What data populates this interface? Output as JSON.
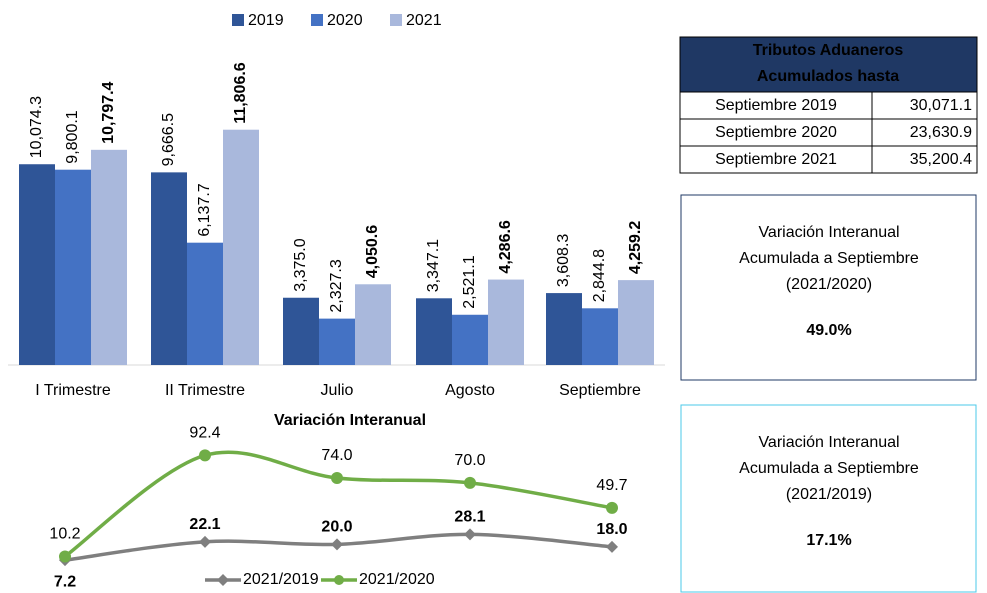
{
  "chart_data": [
    {
      "type": "bar",
      "categories": [
        "I Trimestre",
        "II Trimestre",
        "Julio",
        "Agosto",
        "Septiembre"
      ],
      "series": [
        {
          "name": "2019",
          "color": "#2f5597",
          "values": [
            10074.3,
            9666.5,
            3375.0,
            3347.1,
            3608.3
          ],
          "value_labels": [
            "10,074.3",
            "9,666.5",
            "3,375.0",
            "3,347.1",
            "3,608.3"
          ]
        },
        {
          "name": "2020",
          "color": "#4472c4",
          "values": [
            9800.1,
            6137.7,
            2327.3,
            2521.1,
            2844.8
          ],
          "value_labels": [
            "9,800.1",
            "6,137.7",
            "2,327.3",
            "2,521.1",
            "2,844.8"
          ]
        },
        {
          "name": "2021",
          "color": "#a9b8dc",
          "label_bold": true,
          "values": [
            10797.4,
            11806.6,
            4050.6,
            4286.6,
            4259.2
          ],
          "value_labels": [
            "10,797.4",
            "11,806.6",
            "4,050.6",
            "4,286.6",
            "4,259.2"
          ]
        }
      ],
      "ylim": [
        0,
        14000
      ],
      "legend": "top"
    },
    {
      "type": "line",
      "title": "Variación Interanual",
      "series": [
        {
          "name": "2021/2019",
          "color": "#7f7f7f",
          "marker": "diamond",
          "values": [
            7.2,
            22.1,
            20.0,
            28.1,
            18.0
          ],
          "value_labels": [
            "7.2",
            "22.1",
            "20.0",
            "28.1",
            "18.0"
          ]
        },
        {
          "name": "2021/2020",
          "color": "#70ad47",
          "marker": "circle",
          "values": [
            10.2,
            92.4,
            74.0,
            70.0,
            49.7
          ],
          "value_labels": [
            "10.2",
            "92.4",
            "74.0",
            "70.0",
            "49.7"
          ]
        }
      ],
      "ylim": [
        0,
        100
      ],
      "legend": "bottom"
    }
  ],
  "table": {
    "header": [
      "Tributos Aduaneros",
      "Acumulados hasta"
    ],
    "rows": [
      [
        "Septiembre 2019",
        "30,071.1"
      ],
      [
        "Septiembre 2020",
        "23,630.9"
      ],
      [
        "Septiembre 2021",
        "35,200.4"
      ]
    ]
  },
  "boxes": [
    {
      "lines": [
        "Variación Interanual",
        "Acumulada a Septiembre",
        "(2021/2020)"
      ],
      "value": "49.0%"
    },
    {
      "lines": [
        "Variación Interanual",
        "Acumulada a Septiembre",
        "(2021/2019)"
      ],
      "value": "17.1%"
    }
  ]
}
